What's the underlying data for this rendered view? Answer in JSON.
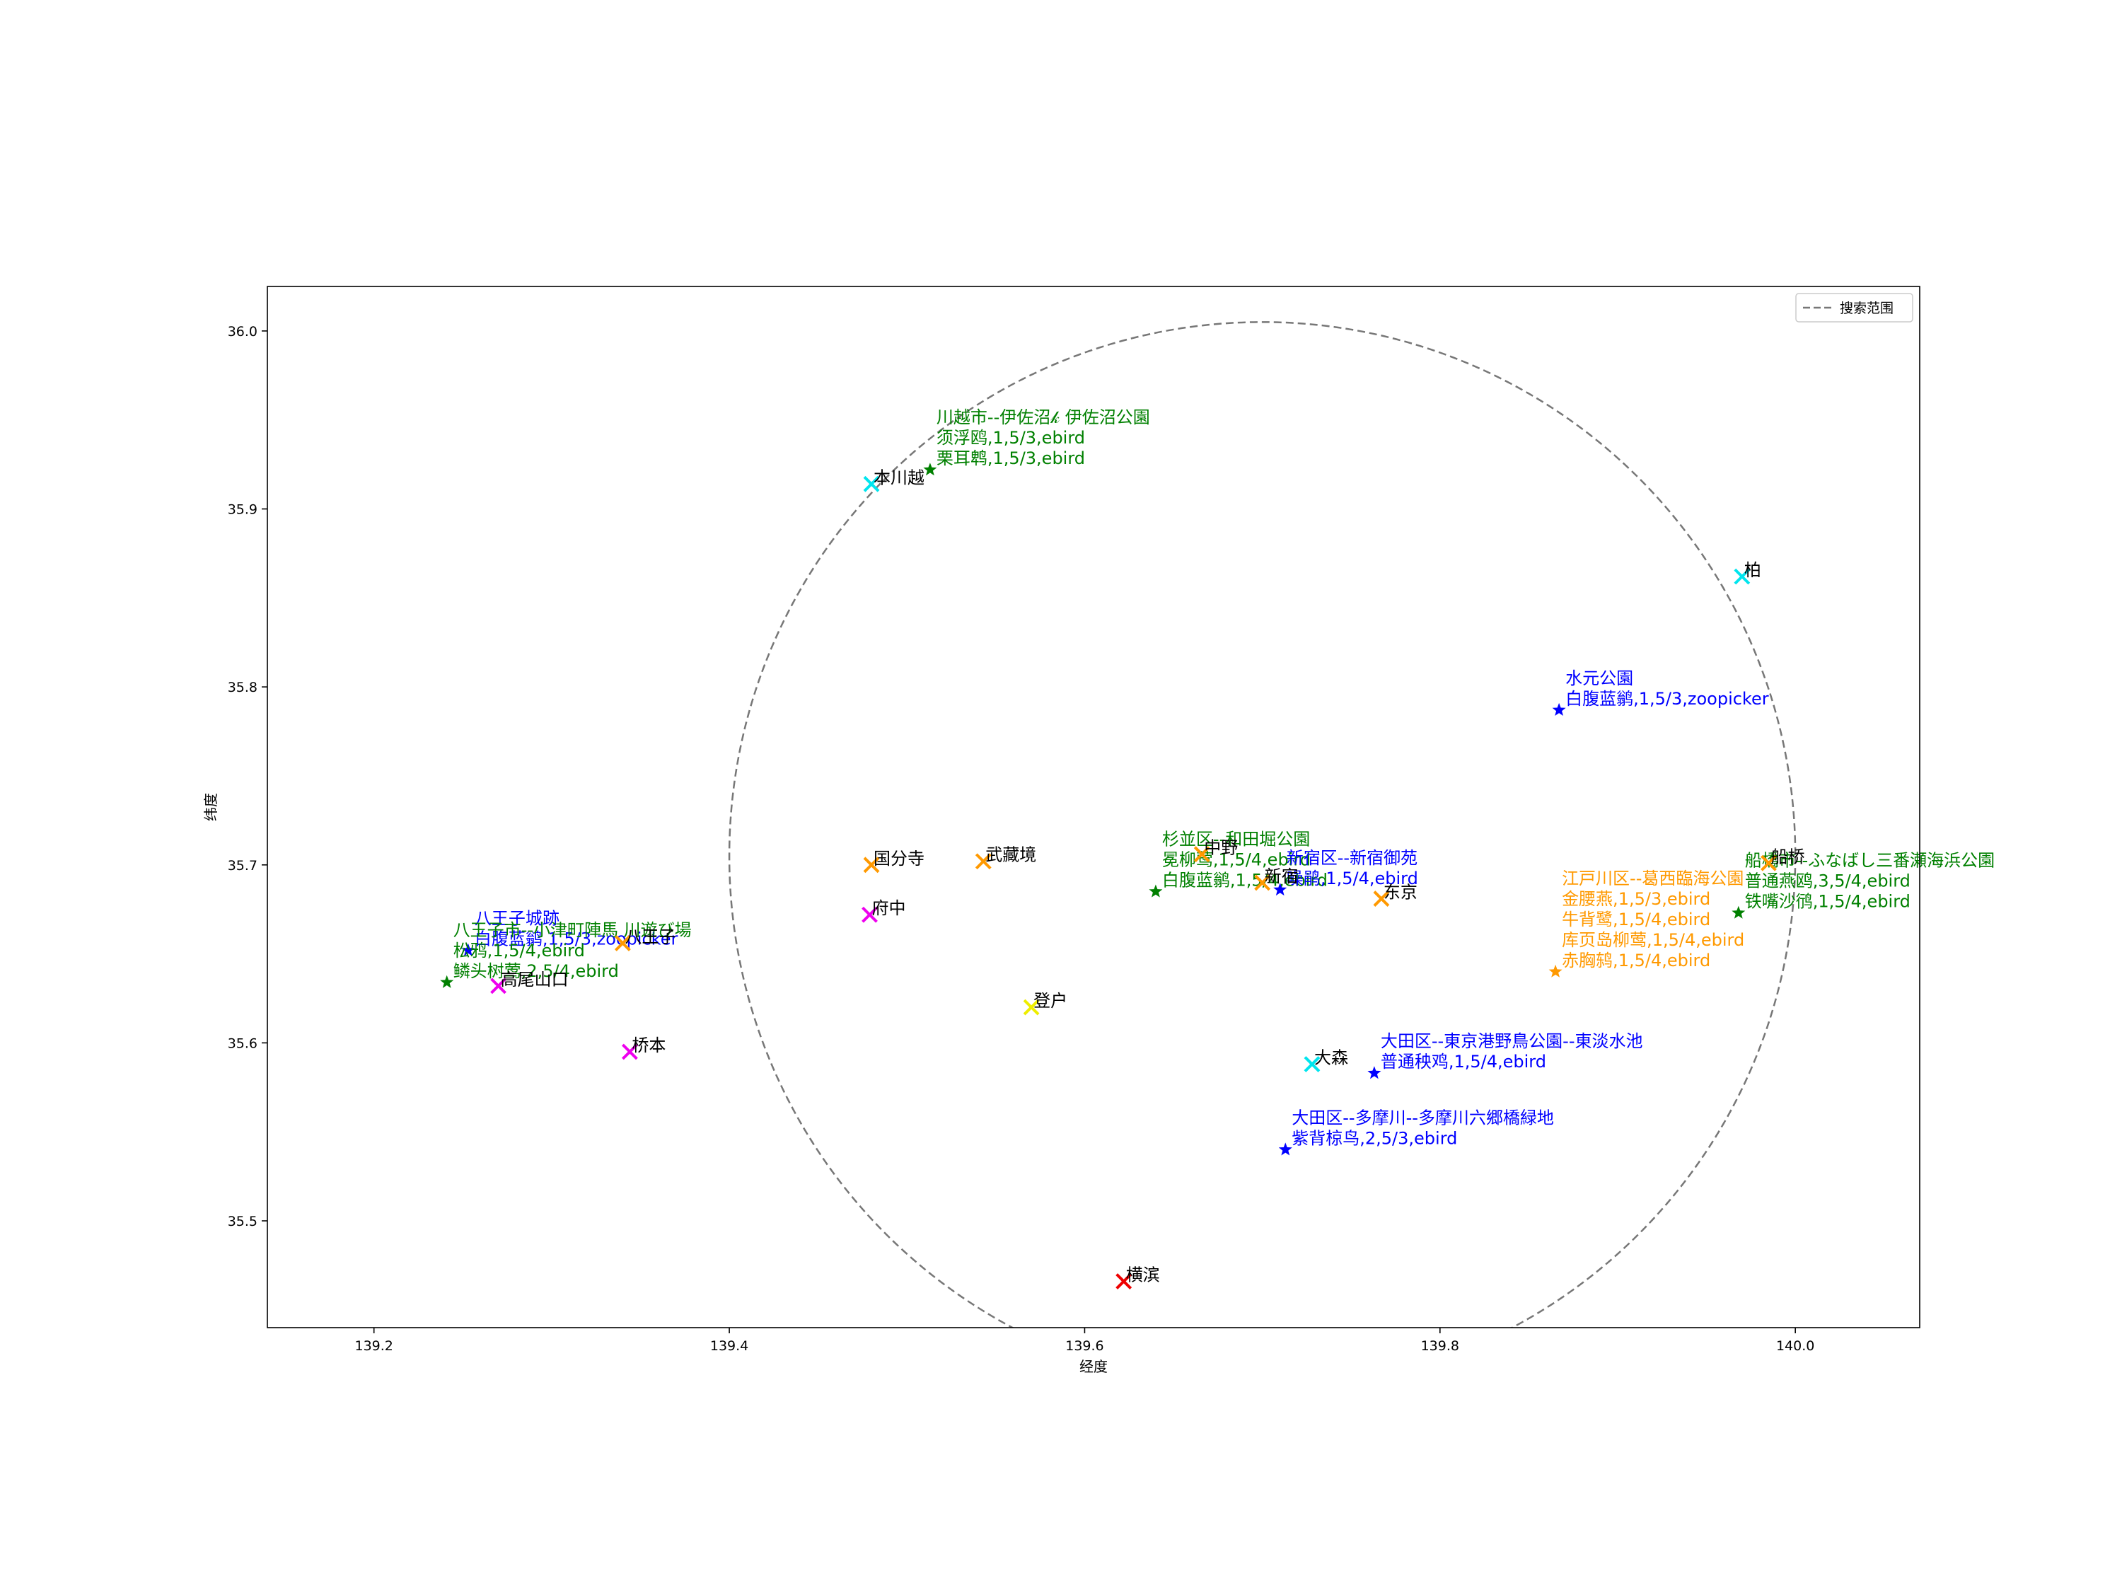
{
  "chart_data": {
    "type": "scatter",
    "title": "",
    "xlabel": "经度",
    "ylabel": "纬度",
    "xlim": [
      139.14,
      140.07
    ],
    "ylim": [
      35.44,
      36.025
    ],
    "xticks": [
      139.2,
      139.4,
      139.6,
      139.8,
      140.0
    ],
    "xtick_labels": [
      "139.2",
      "139.4",
      "139.6",
      "139.8",
      "140.0"
    ],
    "yticks": [
      35.5,
      35.6,
      35.7,
      35.8,
      35.9,
      36.0
    ],
    "ytick_labels": [
      "35.5",
      "35.6",
      "35.7",
      "35.8",
      "35.9",
      "36.0"
    ],
    "grid": false,
    "legend": {
      "placement": "upper right",
      "entries": [
        {
          "label": "搜索范围",
          "style": "dashed",
          "color": "#777777"
        }
      ]
    },
    "search_range": {
      "center": [
        139.7,
        35.705
      ],
      "radius_deg": 0.3,
      "color": "#777777",
      "style": "dashed"
    },
    "cities": [
      {
        "name": "本川越",
        "x": 139.48,
        "y": 35.914,
        "color": "#00e5ee"
      },
      {
        "name": "柏",
        "x": 139.97,
        "y": 35.862,
        "color": "#00e5ee"
      },
      {
        "name": "国分寺",
        "x": 139.48,
        "y": 35.7,
        "color": "#ff9900"
      },
      {
        "name": "武藏境",
        "x": 139.543,
        "y": 35.702,
        "color": "#ff9900"
      },
      {
        "name": "中野",
        "x": 139.666,
        "y": 35.706,
        "color": "#ff9900"
      },
      {
        "name": "新宿",
        "x": 139.7,
        "y": 35.69,
        "color": "#ff9900"
      },
      {
        "name": "东京",
        "x": 139.767,
        "y": 35.681,
        "color": "#ff9900"
      },
      {
        "name": "船桥",
        "x": 139.985,
        "y": 35.701,
        "color": "#ff9900"
      },
      {
        "name": "府中",
        "x": 139.479,
        "y": 35.672,
        "color": "#ee00ee"
      },
      {
        "name": "八王子",
        "x": 139.34,
        "y": 35.656,
        "color": "#ff9900"
      },
      {
        "name": "高尾山口",
        "x": 139.27,
        "y": 35.632,
        "color": "#ee00ee"
      },
      {
        "name": "桥本",
        "x": 139.344,
        "y": 35.595,
        "color": "#ee00ee"
      },
      {
        "name": "登户",
        "x": 139.57,
        "y": 35.62,
        "color": "#eeee00"
      },
      {
        "name": "大森",
        "x": 139.728,
        "y": 35.588,
        "color": "#00e5ee"
      },
      {
        "name": "横滨",
        "x": 139.622,
        "y": 35.466,
        "color": "#ee0000"
      }
    ],
    "sightings": [
      {
        "x": 139.513,
        "y": 35.922,
        "color": "#008000",
        "lines": [
          "川越市--伊佐沼𝓀 伊佐沼公園",
          "须浮鸥,1,5/3,ebird",
          "栗耳鹎,1,5/3,ebird"
        ]
      },
      {
        "x": 139.867,
        "y": 35.787,
        "color": "#0000ff",
        "lines": [
          "水元公園",
          "白腹蓝鹟,1,5/3,zoopicker"
        ]
      },
      {
        "x": 139.64,
        "y": 35.685,
        "color": "#008000",
        "lines": [
          "杉並区--和田堀公園",
          "冕柳莺,1,5/4,ebird",
          "白腹蓝鹟,1,5/4,ebird"
        ]
      },
      {
        "x": 139.71,
        "y": 35.686,
        "color": "#0000ff",
        "lines": [
          "新宿区--新宿御苑",
          "噪鹃,1,5/4,ebird"
        ]
      },
      {
        "x": 139.865,
        "y": 35.64,
        "color": "#ff9900",
        "lines": [
          "江戸川区--葛西臨海公園",
          "金腰燕,1,5/3,ebird",
          "牛背鹭,1,5/4,ebird",
          "库页岛柳莺,1,5/4,ebird",
          "赤胸鸫,1,5/4,ebird"
        ]
      },
      {
        "x": 139.968,
        "y": 35.673,
        "color": "#008000",
        "lines": [
          "船橋市--ふなばし三番瀬海浜公園",
          "普通燕鸥,3,5/4,ebird",
          "铁嘴沙鸻,1,5/4,ebird"
        ]
      },
      {
        "x": 139.253,
        "y": 35.652,
        "color": "#0000ff",
        "lines": [
          "八王子城跡",
          "白腹蓝鹟,1,5/3,zoopicker"
        ]
      },
      {
        "x": 139.241,
        "y": 35.634,
        "color": "#008000",
        "lines": [
          "八王子市--小津町陣馬 川遊び場",
          "松鸦,1,5/4,ebird",
          "鳞头树莺,2,5/4,ebird"
        ]
      },
      {
        "x": 139.763,
        "y": 35.583,
        "color": "#0000ff",
        "lines": [
          "大田区--東京港野鳥公園--東淡水池",
          "普通秧鸡,1,5/4,ebird"
        ]
      },
      {
        "x": 139.713,
        "y": 35.54,
        "color": "#0000ff",
        "lines": [
          "大田区--多摩川--多摩川六郷橋緑地",
          "紫背椋鸟,2,5/3,ebird"
        ]
      }
    ]
  }
}
